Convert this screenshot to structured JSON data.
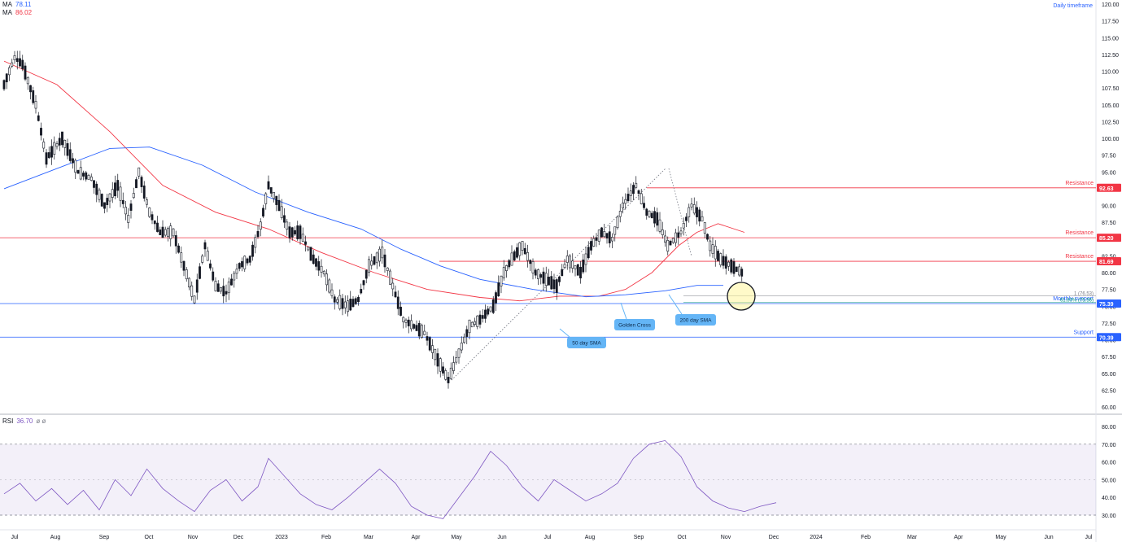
{
  "chart_data": {
    "type": "candlestick",
    "timeframe_label": "Daily timeframe",
    "y_range": [
      60.0,
      120.0
    ],
    "y_ticks": [
      "60.00",
      "62.50",
      "65.00",
      "67.50",
      "70.00",
      "72.50",
      "75.00",
      "77.50",
      "80.00",
      "82.50",
      "85.00",
      "87.50",
      "90.00",
      "92.50",
      "95.00",
      "97.50",
      "100.00",
      "102.50",
      "105.00",
      "107.50",
      "110.00",
      "112.50",
      "115.00",
      "117.50",
      "120.00"
    ],
    "x_ticks": [
      "Jul",
      "Aug",
      "Sep",
      "Oct",
      "Nov",
      "Dec",
      "2023",
      "Feb",
      "Mar",
      "Apr",
      "May",
      "Jun",
      "Jul",
      "Aug",
      "Sep",
      "Oct",
      "Nov",
      "Dec",
      "2024",
      "Feb",
      "Mar",
      "Apr",
      "May",
      "Jun",
      "Jul"
    ],
    "indicators": [
      {
        "label": "MA",
        "value": "78.11",
        "color": "#2962ff"
      },
      {
        "label": "MA",
        "value": "86.02",
        "color": "#f23645"
      }
    ],
    "price_path": [
      [
        0,
        108
      ],
      [
        4,
        112
      ],
      [
        7,
        111
      ],
      [
        12,
        105
      ],
      [
        16,
        97
      ],
      [
        22,
        100
      ],
      [
        28,
        95
      ],
      [
        33,
        94
      ],
      [
        38,
        90
      ],
      [
        43,
        93
      ],
      [
        47,
        88
      ],
      [
        51,
        95
      ],
      [
        55,
        89
      ],
      [
        59,
        86
      ],
      [
        64,
        86
      ],
      [
        68,
        81
      ],
      [
        72,
        76
      ],
      [
        76,
        84
      ],
      [
        80,
        78
      ],
      [
        84,
        77
      ],
      [
        89,
        81
      ],
      [
        93,
        82
      ],
      [
        97,
        87
      ],
      [
        100,
        93
      ],
      [
        104,
        90
      ],
      [
        108,
        86
      ],
      [
        112,
        86
      ],
      [
        117,
        82
      ],
      [
        121,
        80
      ],
      [
        125,
        76
      ],
      [
        130,
        75
      ],
      [
        134,
        76
      ],
      [
        138,
        81
      ],
      [
        143,
        83
      ],
      [
        147,
        78
      ],
      [
        151,
        73
      ],
      [
        155,
        72
      ],
      [
        159,
        71
      ],
      [
        164,
        67
      ],
      [
        168,
        64
      ],
      [
        172,
        68
      ],
      [
        176,
        72
      ],
      [
        180,
        73
      ],
      [
        185,
        75
      ],
      [
        189,
        80
      ],
      [
        192,
        82
      ],
      [
        196,
        84
      ],
      [
        201,
        80
      ],
      [
        205,
        79
      ],
      [
        209,
        78
      ],
      [
        213,
        82
      ],
      [
        218,
        80
      ],
      [
        222,
        84
      ],
      [
        226,
        86
      ],
      [
        230,
        85
      ],
      [
        234,
        90
      ],
      [
        239,
        93
      ],
      [
        243,
        89
      ],
      [
        247,
        88
      ],
      [
        251,
        84
      ],
      [
        256,
        86
      ],
      [
        260,
        90
      ],
      [
        264,
        88
      ],
      [
        267,
        84
      ],
      [
        271,
        82
      ],
      [
        275,
        81
      ],
      [
        279,
        80
      ]
    ],
    "ma_fast_path": [
      [
        0,
        111.5
      ],
      [
        20,
        108
      ],
      [
        40,
        101
      ],
      [
        60,
        93
      ],
      [
        80,
        89
      ],
      [
        100,
        86.5
      ],
      [
        120,
        83
      ],
      [
        140,
        80
      ],
      [
        160,
        77.5
      ],
      [
        180,
        76.3
      ],
      [
        195,
        75.8
      ],
      [
        210,
        76.5
      ],
      [
        225,
        76.5
      ],
      [
        235,
        77.5
      ],
      [
        245,
        80
      ],
      [
        255,
        84
      ],
      [
        262,
        86
      ],
      [
        270,
        87.3
      ],
      [
        280,
        86
      ]
    ],
    "ma_slow_path": [
      [
        0,
        92.5
      ],
      [
        20,
        95.5
      ],
      [
        40,
        98.5
      ],
      [
        55,
        98.7
      ],
      [
        75,
        96
      ],
      [
        95,
        92
      ],
      [
        115,
        89
      ],
      [
        135,
        86.5
      ],
      [
        150,
        83.5
      ],
      [
        165,
        81
      ],
      [
        180,
        79
      ],
      [
        200,
        77.5
      ],
      [
        220,
        76.4
      ],
      [
        235,
        76.7
      ],
      [
        250,
        77.3
      ],
      [
        262,
        78.1
      ],
      [
        272,
        78.1
      ]
    ],
    "levels": [
      {
        "value": 92.63,
        "label": "Resistance",
        "axis_label": "92.63",
        "color": "#f23645"
      },
      {
        "value": 85.2,
        "label": "Resistance",
        "axis_label": "85.20",
        "color": "#f23645"
      },
      {
        "value": 81.69,
        "label": "Resistance",
        "axis_label": "81.69",
        "color": "#f23645"
      },
      {
        "value": 75.39,
        "label": "Monthly support",
        "axis_label": "75.39",
        "color": "#2962ff"
      },
      {
        "value": 70.39,
        "label": "Support",
        "axis_label": "70.39",
        "color": "#2962ff"
      }
    ],
    "fib_levels": [
      {
        "value": 76.53,
        "label": "1 (76.53)",
        "color": "#787b86"
      },
      {
        "value": 75.56,
        "label": "61.80% (75.56)",
        "color": "#089981"
      }
    ],
    "annotations": [
      {
        "text": "50 day SMA"
      },
      {
        "text": "Golden Cross"
      },
      {
        "text": "200 day SMA"
      }
    ],
    "rsi": {
      "label": "RSI",
      "value": "36.70",
      "extra": "ø ø",
      "color": "#7e57c2",
      "y_range": [
        25,
        85
      ],
      "y_ticks": [
        "30.00",
        "40.00",
        "50.00",
        "60.00",
        "70.00",
        "80.00"
      ],
      "upper_band": 70,
      "lower_band": 30,
      "path": [
        [
          0,
          42
        ],
        [
          6,
          48
        ],
        [
          12,
          38
        ],
        [
          18,
          45
        ],
        [
          24,
          36
        ],
        [
          30,
          44
        ],
        [
          36,
          33
        ],
        [
          42,
          50
        ],
        [
          48,
          41
        ],
        [
          54,
          56
        ],
        [
          60,
          45
        ],
        [
          66,
          38
        ],
        [
          72,
          32
        ],
        [
          78,
          44
        ],
        [
          84,
          50
        ],
        [
          90,
          38
        ],
        [
          96,
          46
        ],
        [
          100,
          62
        ],
        [
          106,
          52
        ],
        [
          112,
          42
        ],
        [
          118,
          36
        ],
        [
          124,
          33
        ],
        [
          130,
          40
        ],
        [
          136,
          48
        ],
        [
          142,
          56
        ],
        [
          148,
          48
        ],
        [
          154,
          35
        ],
        [
          160,
          30
        ],
        [
          166,
          28
        ],
        [
          172,
          40
        ],
        [
          178,
          52
        ],
        [
          184,
          66
        ],
        [
          190,
          58
        ],
        [
          196,
          46
        ],
        [
          202,
          38
        ],
        [
          208,
          50
        ],
        [
          214,
          44
        ],
        [
          220,
          38
        ],
        [
          226,
          42
        ],
        [
          232,
          48
        ],
        [
          238,
          62
        ],
        [
          244,
          70
        ],
        [
          250,
          72
        ],
        [
          256,
          63
        ],
        [
          262,
          46
        ],
        [
          268,
          38
        ],
        [
          274,
          34
        ],
        [
          280,
          32
        ],
        [
          286,
          35
        ],
        [
          292,
          37
        ]
      ]
    }
  }
}
